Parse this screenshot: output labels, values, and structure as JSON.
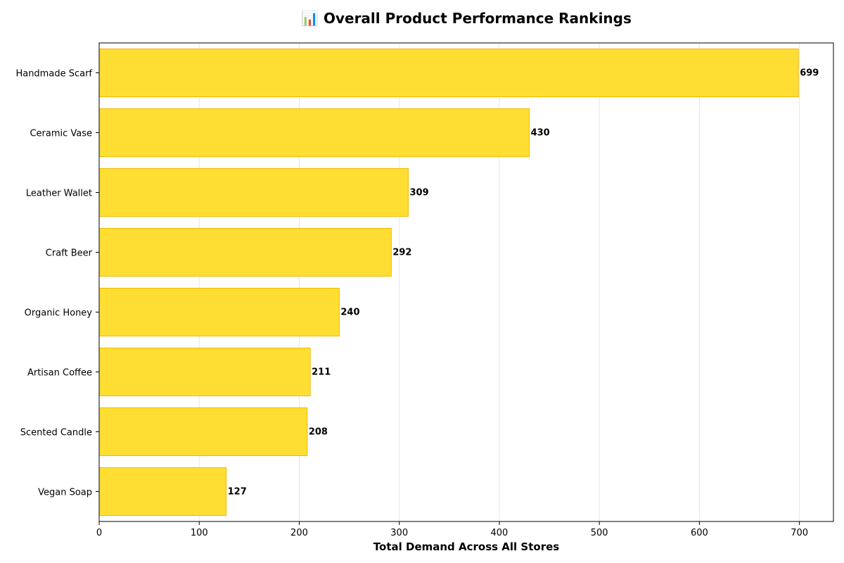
{
  "chart_data": {
    "type": "bar",
    "orientation": "horizontal",
    "title": "📊 Overall Product Performance Rankings",
    "xlabel": "Total Demand Across All Stores",
    "ylabel": "",
    "categories": [
      "Handmade Scarf",
      "Ceramic Vase",
      "Leather Wallet",
      "Craft Beer",
      "Organic Honey",
      "Artisan Coffee",
      "Scented Candle",
      "Vegan Soap"
    ],
    "values": [
      699,
      430,
      309,
      292,
      240,
      211,
      208,
      127
    ],
    "xlim": [
      0,
      734
    ],
    "xticks": [
      0,
      100,
      200,
      300,
      400,
      500,
      600,
      700
    ],
    "grid": "vertical",
    "colors": {
      "bar_fill": "#FFDE34",
      "bar_edge": "#F5B800",
      "grid": "#e6e6e6",
      "axis": "#000000"
    }
  }
}
